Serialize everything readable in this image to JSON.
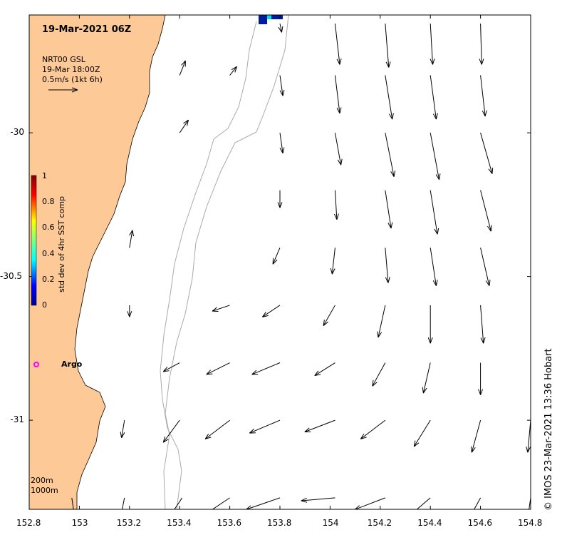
{
  "title": "19-Mar-2021 06Z",
  "product": {
    "line1": "NRT00 GSL",
    "line2": "19-Mar 18:00Z",
    "line3": "0.5m/s (1kt 6h)"
  },
  "colorbar": {
    "label": "std dev of 4hr SST comp",
    "ticks": [
      "1",
      "0.8",
      "0.6",
      "0.4",
      "0.2",
      "0"
    ]
  },
  "argo": {
    "label": "Argo",
    "color": "#ff00ff"
  },
  "contours": {
    "line1": "200m",
    "line2": "1000m"
  },
  "credit": "©  IMOS 23-Mar-2021 13:36 Hobart",
  "colors": {
    "land": "#fdc996",
    "contour": "#aaaaaa",
    "arrows": "#000000"
  },
  "axes": {
    "x_ticks": [
      "152.8",
      "153",
      "153.2",
      "153.4",
      "153.6",
      "153.8",
      "154",
      "154.2",
      "154.4",
      "154.6",
      "154.8"
    ],
    "y_ticks": [
      "-30",
      "-30.5",
      "-31"
    ],
    "x_range": [
      152.8,
      154.8
    ],
    "y_range": [
      -29.59,
      -31.31
    ]
  },
  "chart_data": {
    "type": "map",
    "description_units": "current velocity vectors; u,v in m/s (eastward, northward)",
    "vectors": [
      {
        "lon": 152.97,
        "lat": -31.27,
        "u": 0.05,
        "v": -0.35
      },
      {
        "lon": 153.18,
        "lat": -31.27,
        "u": -0.08,
        "v": -0.4
      },
      {
        "lon": 153.41,
        "lat": -31.27,
        "u": -0.2,
        "v": -0.3
      },
      {
        "lon": 153.6,
        "lat": -31.27,
        "u": -0.48,
        "v": -0.32
      },
      {
        "lon": 153.8,
        "lat": -31.27,
        "u": -0.58,
        "v": -0.2
      },
      {
        "lon": 154.02,
        "lat": -31.27,
        "u": -0.58,
        "v": -0.05
      },
      {
        "lon": 154.22,
        "lat": -31.27,
        "u": -0.52,
        "v": -0.2
      },
      {
        "lon": 154.4,
        "lat": -31.27,
        "u": -0.35,
        "v": -0.3
      },
      {
        "lon": 154.6,
        "lat": -31.27,
        "u": -0.22,
        "v": -0.4
      },
      {
        "lon": 154.8,
        "lat": -31.27,
        "u": -0.08,
        "v": -0.55
      },
      {
        "lon": 153.18,
        "lat": -31.0,
        "u": -0.05,
        "v": -0.3
      },
      {
        "lon": 153.4,
        "lat": -31.0,
        "u": -0.28,
        "v": -0.38
      },
      {
        "lon": 153.6,
        "lat": -31.0,
        "u": -0.42,
        "v": -0.32
      },
      {
        "lon": 153.8,
        "lat": -31.0,
        "u": -0.52,
        "v": -0.22
      },
      {
        "lon": 154.02,
        "lat": -31.0,
        "u": -0.52,
        "v": -0.2
      },
      {
        "lon": 154.22,
        "lat": -31.0,
        "u": -0.42,
        "v": -0.32
      },
      {
        "lon": 154.4,
        "lat": -31.0,
        "u": -0.28,
        "v": -0.45
      },
      {
        "lon": 154.6,
        "lat": -31.0,
        "u": -0.15,
        "v": -0.55
      },
      {
        "lon": 154.8,
        "lat": -31.0,
        "u": -0.05,
        "v": -0.55
      },
      {
        "lon": 153.4,
        "lat": -30.8,
        "u": -0.28,
        "v": -0.15
      },
      {
        "lon": 153.6,
        "lat": -30.8,
        "u": -0.4,
        "v": -0.2
      },
      {
        "lon": 153.8,
        "lat": -30.8,
        "u": -0.48,
        "v": -0.2
      },
      {
        "lon": 154.02,
        "lat": -30.8,
        "u": -0.35,
        "v": -0.22
      },
      {
        "lon": 154.22,
        "lat": -30.8,
        "u": -0.22,
        "v": -0.4
      },
      {
        "lon": 154.4,
        "lat": -30.8,
        "u": -0.12,
        "v": -0.52
      },
      {
        "lon": 154.6,
        "lat": -30.8,
        "u": 0.0,
        "v": -0.55
      },
      {
        "lon": 153.2,
        "lat": -30.6,
        "u": 0.0,
        "v": -0.2
      },
      {
        "lon": 153.6,
        "lat": -30.6,
        "u": -0.3,
        "v": -0.1
      },
      {
        "lon": 153.8,
        "lat": -30.6,
        "u": -0.3,
        "v": -0.2
      },
      {
        "lon": 154.02,
        "lat": -30.6,
        "u": -0.2,
        "v": -0.35
      },
      {
        "lon": 154.22,
        "lat": -30.6,
        "u": -0.12,
        "v": -0.55
      },
      {
        "lon": 154.4,
        "lat": -30.6,
        "u": 0.0,
        "v": -0.65
      },
      {
        "lon": 154.6,
        "lat": -30.6,
        "u": 0.05,
        "v": -0.65
      },
      {
        "lon": 153.2,
        "lat": -30.4,
        "u": 0.05,
        "v": 0.3
      },
      {
        "lon": 153.8,
        "lat": -30.4,
        "u": -0.12,
        "v": -0.28
      },
      {
        "lon": 154.02,
        "lat": -30.4,
        "u": -0.05,
        "v": -0.45
      },
      {
        "lon": 154.22,
        "lat": -30.4,
        "u": 0.05,
        "v": -0.6
      },
      {
        "lon": 154.4,
        "lat": -30.4,
        "u": 0.1,
        "v": -0.65
      },
      {
        "lon": 154.6,
        "lat": -30.4,
        "u": 0.15,
        "v": -0.65
      },
      {
        "lon": 153.8,
        "lat": -30.2,
        "u": 0.0,
        "v": -0.3
      },
      {
        "lon": 154.02,
        "lat": -30.2,
        "u": 0.03,
        "v": -0.5
      },
      {
        "lon": 154.22,
        "lat": -30.2,
        "u": 0.1,
        "v": -0.65
      },
      {
        "lon": 154.4,
        "lat": -30.2,
        "u": 0.12,
        "v": -0.75
      },
      {
        "lon": 154.6,
        "lat": -30.2,
        "u": 0.18,
        "v": -0.7
      },
      {
        "lon": 153.4,
        "lat": -30.0,
        "u": 0.15,
        "v": 0.22
      },
      {
        "lon": 153.8,
        "lat": -30.0,
        "u": 0.05,
        "v": -0.35
      },
      {
        "lon": 154.02,
        "lat": -30.0,
        "u": 0.1,
        "v": -0.55
      },
      {
        "lon": 154.22,
        "lat": -30.0,
        "u": 0.15,
        "v": -0.75
      },
      {
        "lon": 154.4,
        "lat": -30.0,
        "u": 0.15,
        "v": -0.8
      },
      {
        "lon": 154.6,
        "lat": -30.0,
        "u": 0.2,
        "v": -0.7
      },
      {
        "lon": 153.4,
        "lat": -29.8,
        "u": 0.1,
        "v": 0.25
      },
      {
        "lon": 153.6,
        "lat": -29.8,
        "u": 0.12,
        "v": 0.15
      },
      {
        "lon": 153.8,
        "lat": -29.8,
        "u": 0.05,
        "v": -0.35
      },
      {
        "lon": 154.02,
        "lat": -29.8,
        "u": 0.08,
        "v": -0.65
      },
      {
        "lon": 154.22,
        "lat": -29.8,
        "u": 0.12,
        "v": -0.75
      },
      {
        "lon": 154.4,
        "lat": -29.8,
        "u": 0.1,
        "v": -0.75
      },
      {
        "lon": 154.6,
        "lat": -29.8,
        "u": 0.08,
        "v": -0.7
      },
      {
        "lon": 153.8,
        "lat": -29.62,
        "u": 0.03,
        "v": -0.15
      },
      {
        "lon": 154.02,
        "lat": -29.62,
        "u": 0.08,
        "v": -0.7
      },
      {
        "lon": 154.22,
        "lat": -29.62,
        "u": 0.06,
        "v": -0.75
      },
      {
        "lon": 154.4,
        "lat": -29.62,
        "u": 0.04,
        "v": -0.7
      },
      {
        "lon": 154.6,
        "lat": -29.62,
        "u": 0.02,
        "v": -0.7
      }
    ]
  }
}
